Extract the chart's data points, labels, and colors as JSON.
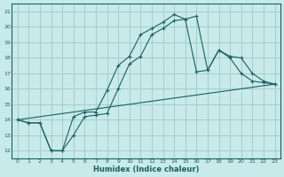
{
  "xlabel": "Humidex (Indice chaleur)",
  "bg_color": "#c8eaea",
  "grid_color": "#a0c8c8",
  "line_color": "#1a6060",
  "xlim": [
    -0.5,
    23.5
  ],
  "ylim": [
    11.5,
    21.5
  ],
  "xticks": [
    0,
    1,
    2,
    3,
    4,
    5,
    6,
    7,
    8,
    9,
    10,
    11,
    12,
    13,
    14,
    15,
    16,
    17,
    18,
    19,
    20,
    21,
    22,
    23
  ],
  "yticks": [
    12,
    13,
    14,
    15,
    16,
    17,
    18,
    19,
    20,
    21
  ],
  "line1_x": [
    0,
    1,
    2,
    3,
    4,
    5,
    6,
    7,
    8,
    9,
    10,
    11,
    12,
    13,
    14,
    15,
    16,
    17,
    18,
    19,
    20,
    21,
    22,
    23
  ],
  "line1_y": [
    14.0,
    13.8,
    13.8,
    12.0,
    12.0,
    14.2,
    14.5,
    14.5,
    15.9,
    17.5,
    18.1,
    19.5,
    19.9,
    20.3,
    20.8,
    20.5,
    17.1,
    17.2,
    18.5,
    18.0,
    17.0,
    16.5,
    16.4,
    16.3
  ],
  "line2_x": [
    0,
    1,
    2,
    3,
    4,
    5,
    6,
    7,
    8,
    9,
    10,
    11,
    12,
    13,
    14,
    15,
    16,
    17,
    18,
    19,
    20,
    21,
    22,
    23
  ],
  "line2_y": [
    14.0,
    13.8,
    13.8,
    12.0,
    12.0,
    13.0,
    14.2,
    14.3,
    14.4,
    16.0,
    17.6,
    18.1,
    19.5,
    19.9,
    20.4,
    20.5,
    20.7,
    17.2,
    18.5,
    18.1,
    18.0,
    17.0,
    16.5,
    16.3
  ],
  "line3_x": [
    0,
    23
  ],
  "line3_y": [
    14.0,
    16.3
  ]
}
